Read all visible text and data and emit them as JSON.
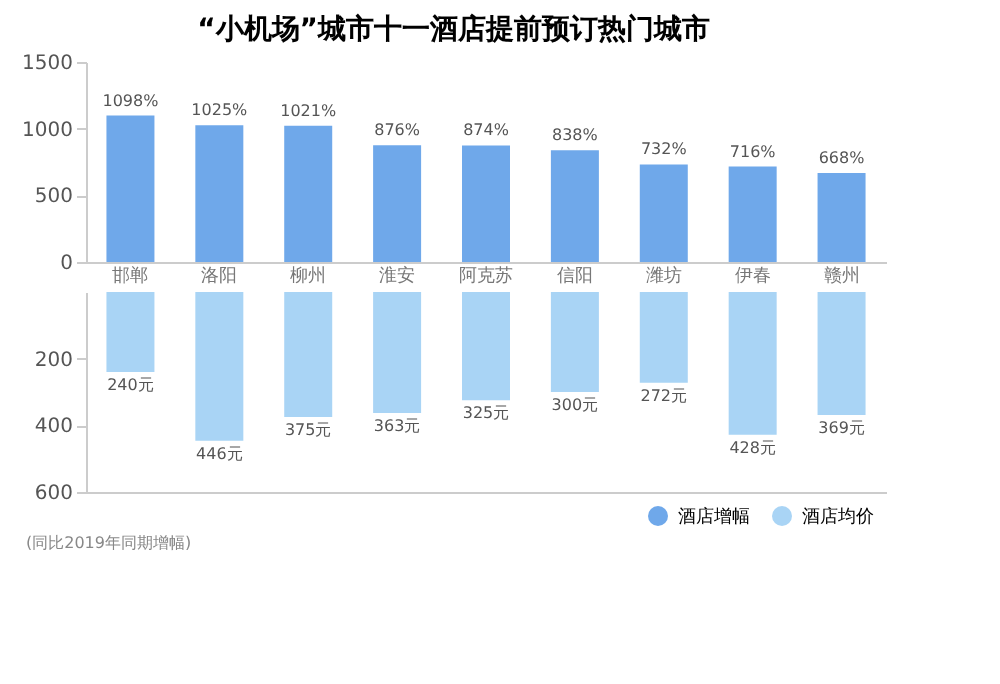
{
  "chart_data": [
    {
      "type": "bar",
      "title": "“小机场”城市十一酒店提前预订热门城市",
      "categories": [
        "邯郸",
        "洛阳",
        "柳州",
        "淮安",
        "阿克苏",
        "信阳",
        "潍坊",
        "伊春",
        "赣州"
      ],
      "series": [
        {
          "name": "酒店增幅",
          "color": "#6fa8ea",
          "values": [
            1098,
            1025,
            1021,
            876,
            874,
            838,
            732,
            716,
            668
          ],
          "value_labels": [
            "1098%",
            "1025%",
            "1021%",
            "876%",
            "874%",
            "838%",
            "732%",
            "716%",
            "668%"
          ]
        }
      ],
      "ylim": [
        0,
        1500
      ],
      "yticks": [
        0,
        500,
        1000,
        1500
      ],
      "grid": false
    },
    {
      "type": "bar",
      "categories": [
        null,
        null,
        null,
        null,
        null,
        null,
        null,
        null,
        null
      ],
      "series": [
        {
          "name": "酒店均价",
          "color": "#a9d4f5",
          "values": [
            240,
            446,
            375,
            363,
            325,
            300,
            272,
            428,
            369
          ],
          "value_labels": [
            "240元",
            "446元",
            "375元",
            "363元",
            "325元",
            "300元",
            "272元",
            "428元",
            "369元"
          ]
        }
      ],
      "ylim": [
        600,
        0
      ],
      "yticks": [
        200,
        400,
        600
      ],
      "tick_labels": "y",
      "grid": false,
      "legend": "bottom right",
      "annotations": [
        "(同比2019年同期增幅)"
      ]
    }
  ]
}
